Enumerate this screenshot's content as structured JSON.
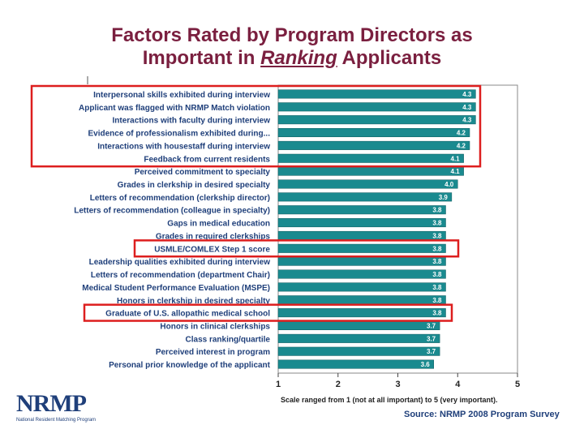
{
  "header": {
    "line1": "Factors Rated by Program Directors as",
    "line2_pre": "Important in ",
    "line2_em": "Ranking",
    "line2_post": " Applicants"
  },
  "caption": "Scale ranged from 1 (not at all important) to 5 (very important).",
  "source": "Source: NRMP 2008 Program Survey",
  "logo": {
    "name": "NRMP",
    "subtitle": "National Resident Matching Program"
  },
  "colors": {
    "bar": "#1a8a8f",
    "highlight": "#dd1e1e",
    "title": "#7a1f3f",
    "label": "#1f3f7a"
  },
  "chart_data": {
    "type": "bar",
    "orientation": "horizontal",
    "categories": [
      "Interpersonal skills exhibited during interview",
      "Applicant was flagged with NRMP Match violation",
      "Interactions with faculty during interview",
      "Evidence of professionalism exhibited during...",
      "Interactions with housestaff during interview",
      "Feedback from current residents",
      "Perceived commitment to specialty",
      "Grades in clerkship in desired specialty",
      "Letters of recommendation (clerkship director)",
      "Letters of recommendation (colleague in specialty)",
      "Gaps in medical education",
      "Grades in required clerkships",
      "USMLE/COMLEX Step 1 score",
      "Leadership qualities exhibited during interview",
      "Letters of recommendation (department Chair)",
      "Medical Student Performance Evaluation (MSPE)",
      "Honors in clerkship in desired specialty",
      "Graduate of U.S. allopathic medical school",
      "Honors in clinical clerkships",
      "Class ranking/quartile",
      "Perceived interest in program",
      "Personal prior knowledge of the applicant"
    ],
    "values": [
      4.3,
      4.3,
      4.3,
      4.2,
      4.2,
      4.1,
      4.1,
      4.0,
      3.9,
      3.8,
      3.8,
      3.8,
      3.8,
      3.8,
      3.8,
      3.8,
      3.8,
      3.8,
      3.7,
      3.7,
      3.7,
      3.6
    ],
    "value_labels": [
      "4.3",
      "4.3",
      "4.3",
      "4.2",
      "4.2",
      "4.1",
      "4.1",
      "4.0",
      "3.9",
      "3.8",
      "3.8",
      "3.8",
      "3.8",
      "3.8",
      "3.8",
      "3.8",
      "3.8",
      "3.8",
      "3.7",
      "3.7",
      "3.7",
      "3.6"
    ],
    "xlim": [
      1,
      5
    ],
    "xticks": [
      "1",
      "2",
      "3",
      "4",
      "5"
    ],
    "highlight_groups": [
      [
        0,
        5
      ],
      [
        12,
        12
      ],
      [
        17,
        17
      ]
    ]
  }
}
